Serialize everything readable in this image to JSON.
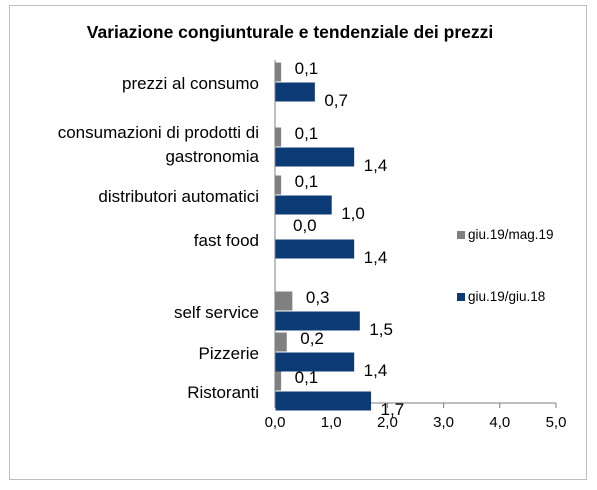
{
  "chart_data": {
    "type": "bar",
    "orientation": "horizontal",
    "title": "Variazione congiunturale e tendenziale dei prezzi",
    "categories": [
      [
        "prezzi al consumo"
      ],
      [
        "consumazioni di prodotti di",
        "gastronomia"
      ],
      [
        "distributori automatici"
      ],
      [
        "fast food"
      ],
      [
        "self service"
      ],
      [
        "Pizzerie"
      ],
      [
        "Ristoranti"
      ]
    ],
    "series": [
      {
        "name": "giu.19/mag.19",
        "color": "#808080",
        "values": [
          0.1,
          0.1,
          0.1,
          0.0,
          0.3,
          0.2,
          0.1
        ],
        "labels": [
          "0,1",
          "0,1",
          "0,1",
          "0,0",
          "0,3",
          "0,2",
          "0,1"
        ]
      },
      {
        "name": "giu.19/giu.18",
        "color": "#0b3a75",
        "values": [
          0.7,
          1.4,
          1.0,
          1.4,
          1.5,
          1.4,
          1.7
        ],
        "labels": [
          "0,7",
          "1,4",
          "1,0",
          "1,4",
          "1,5",
          "1,4",
          "1,7"
        ]
      }
    ],
    "xlim": [
      0,
      5
    ],
    "xticks": [
      "0,0",
      "1,0",
      "2,0",
      "3,0",
      "4,0",
      "5,0"
    ],
    "legend_position": "right",
    "grid": false
  }
}
